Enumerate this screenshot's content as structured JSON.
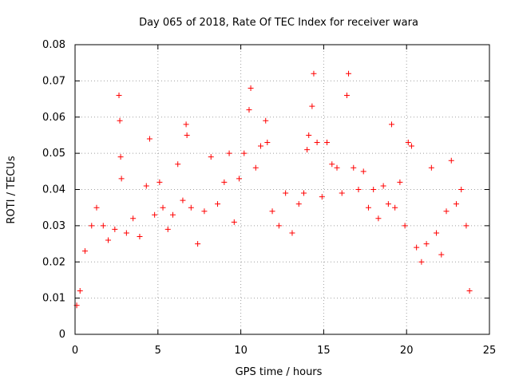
{
  "chart_data": {
    "type": "scatter",
    "title": "Day 065 of 2018, Rate Of TEC Index for receiver wara",
    "xlabel": "GPS time / hours",
    "ylabel": "ROTI / TECUs",
    "xlim": [
      0,
      25
    ],
    "ylim": [
      0,
      0.08
    ],
    "x_ticks": [
      0,
      5,
      10,
      15,
      20,
      25
    ],
    "y_ticks": [
      0,
      0.01,
      0.02,
      0.03,
      0.04,
      0.05,
      0.06,
      0.07,
      0.08
    ],
    "x_tick_labels": [
      "0",
      "5",
      "10",
      "15",
      "20",
      "25"
    ],
    "y_tick_labels": [
      "0",
      "0.01",
      "0.02",
      "0.03",
      "0.04",
      "0.05",
      "0.06",
      "0.07",
      "0.08"
    ],
    "grid": true,
    "marker": "+",
    "color": "#ff0000",
    "series": [
      {
        "name": "ROTI",
        "x": [
          0.1,
          0.3,
          0.6,
          1.0,
          1.3,
          1.7,
          2.0,
          2.4,
          2.65,
          2.7,
          2.75,
          2.8,
          3.1,
          3.5,
          3.9,
          4.3,
          4.5,
          4.8,
          5.1,
          5.3,
          5.6,
          5.9,
          6.2,
          6.5,
          6.7,
          6.75,
          7.0,
          7.4,
          7.8,
          8.2,
          8.6,
          9.0,
          9.3,
          9.6,
          9.9,
          10.2,
          10.5,
          10.6,
          10.9,
          11.2,
          11.5,
          11.6,
          11.9,
          12.3,
          12.7,
          13.1,
          13.5,
          13.8,
          14.0,
          14.1,
          14.3,
          14.4,
          14.6,
          14.9,
          15.2,
          15.5,
          15.8,
          16.1,
          16.4,
          16.5,
          16.8,
          17.1,
          17.4,
          17.7,
          18.0,
          18.3,
          18.6,
          18.9,
          19.1,
          19.3,
          19.6,
          19.9,
          20.1,
          20.3,
          20.6,
          20.9,
          21.2,
          21.5,
          21.8,
          22.1,
          22.4,
          22.7,
          23.0,
          23.3,
          23.6,
          23.8
        ],
        "y": [
          0.008,
          0.012,
          0.023,
          0.03,
          0.035,
          0.03,
          0.026,
          0.029,
          0.066,
          0.059,
          0.049,
          0.043,
          0.028,
          0.032,
          0.027,
          0.041,
          0.054,
          0.033,
          0.042,
          0.035,
          0.029,
          0.033,
          0.047,
          0.037,
          0.058,
          0.055,
          0.035,
          0.025,
          0.034,
          0.049,
          0.036,
          0.042,
          0.05,
          0.031,
          0.043,
          0.05,
          0.062,
          0.068,
          0.046,
          0.052,
          0.059,
          0.053,
          0.034,
          0.03,
          0.039,
          0.028,
          0.036,
          0.039,
          0.051,
          0.055,
          0.063,
          0.072,
          0.053,
          0.038,
          0.053,
          0.047,
          0.046,
          0.039,
          0.066,
          0.072,
          0.046,
          0.04,
          0.045,
          0.035,
          0.04,
          0.032,
          0.041,
          0.036,
          0.058,
          0.035,
          0.042,
          0.03,
          0.053,
          0.052,
          0.024,
          0.02,
          0.025,
          0.046,
          0.028,
          0.022,
          0.034,
          0.048,
          0.036,
          0.04,
          0.03,
          0.012
        ]
      }
    ]
  }
}
